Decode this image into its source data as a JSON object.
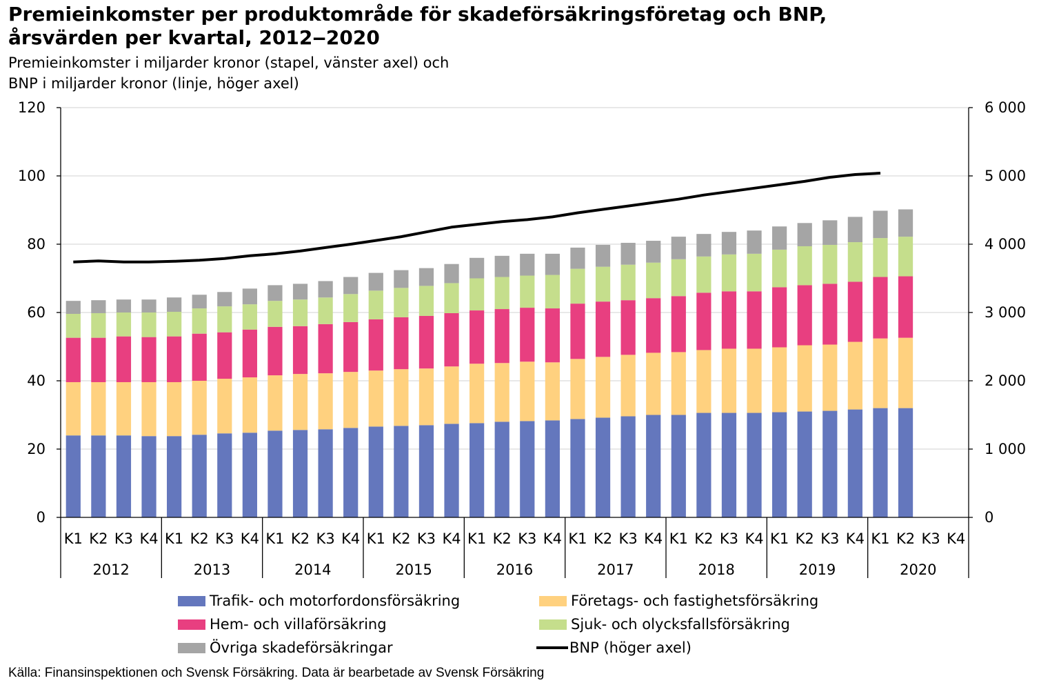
{
  "title": "Premieinkomster per produktområde för skadeförsäkringsföretag och BNP, årsvärden per kvartal, 2012‒2020",
  "subtitle_line1": "Premieinkomster i miljarder kronor (stapel, vänster axel) och",
  "subtitle_line2": "BNP i miljarder kronor (linje, höger axel)",
  "source": "Källa: Finansinspektionen och Svensk Försäkring. Data är bearbetade av Svensk Försäkring",
  "chart_data": {
    "type": "bar",
    "stacked": true,
    "years": [
      "2012",
      "2013",
      "2014",
      "2015",
      "2016",
      "2017",
      "2018",
      "2019",
      "2020"
    ],
    "quarters": [
      "K1",
      "K2",
      "K3",
      "K4"
    ],
    "categories": [
      "2012 K1",
      "2012 K2",
      "2012 K3",
      "2012 K4",
      "2013 K1",
      "2013 K2",
      "2013 K3",
      "2013 K4",
      "2014 K1",
      "2014 K2",
      "2014 K3",
      "2014 K4",
      "2015 K1",
      "2015 K2",
      "2015 K3",
      "2015 K4",
      "2016 K1",
      "2016 K2",
      "2016 K3",
      "2016 K4",
      "2017 K1",
      "2017 K2",
      "2017 K3",
      "2017 K4",
      "2018 K1",
      "2018 K2",
      "2018 K3",
      "2018 K4",
      "2019 K1",
      "2019 K2",
      "2019 K3",
      "2019 K4",
      "2020 K1",
      "2020 K2",
      "2020 K3",
      "2020 K4"
    ],
    "y_left": {
      "min": 0,
      "max": 120,
      "ticks": [
        "0",
        "20",
        "40",
        "60",
        "80",
        "100",
        "120"
      ]
    },
    "y_right": {
      "min": 0,
      "max": 6000,
      "ticks": [
        "0",
        "1 000",
        "2 000",
        "3 000",
        "4 000",
        "5 000",
        "6 000"
      ]
    },
    "grid": true,
    "legend_position": "bottom",
    "series": [
      {
        "name": "Trafik- och motorfordonsförsäkring",
        "color": "#6477BD",
        "values": [
          24.0,
          24.0,
          24.0,
          23.8,
          23.8,
          24.2,
          24.6,
          24.8,
          25.4,
          25.6,
          25.8,
          26.2,
          26.6,
          26.8,
          27.0,
          27.4,
          27.6,
          28.0,
          28.2,
          28.4,
          28.8,
          29.2,
          29.6,
          30.0,
          30.0,
          30.6,
          30.6,
          30.6,
          30.8,
          31.0,
          31.2,
          31.6,
          32.0,
          32.0,
          null,
          null
        ]
      },
      {
        "name": "Företags- och fastighetsförsäkring",
        "color": "#FFD17F",
        "values": [
          15.6,
          15.6,
          15.6,
          15.8,
          15.8,
          15.8,
          16.0,
          16.2,
          16.2,
          16.4,
          16.4,
          16.4,
          16.4,
          16.6,
          16.6,
          16.8,
          17.4,
          17.2,
          17.4,
          17.0,
          17.6,
          17.8,
          18.0,
          18.2,
          18.4,
          18.4,
          18.8,
          18.8,
          19.0,
          19.4,
          19.4,
          19.8,
          20.4,
          20.6,
          null,
          null
        ]
      },
      {
        "name": "Hem- och villaförsäkring",
        "color": "#E83F80",
        "values": [
          13.0,
          13.0,
          13.4,
          13.2,
          13.4,
          13.8,
          13.6,
          14.0,
          14.2,
          14.0,
          14.4,
          14.6,
          15.0,
          15.2,
          15.4,
          15.6,
          15.6,
          15.8,
          15.8,
          15.8,
          16.2,
          16.2,
          16.0,
          16.0,
          16.4,
          16.8,
          16.8,
          16.8,
          17.6,
          17.6,
          17.8,
          17.6,
          18.0,
          18.0,
          null,
          null
        ]
      },
      {
        "name": "Sjuk- och olycksfallsförsäkring",
        "color": "#C5DE8C",
        "values": [
          7.0,
          7.2,
          7.0,
          7.2,
          7.2,
          7.4,
          7.6,
          7.4,
          7.6,
          7.8,
          7.8,
          8.2,
          8.4,
          8.6,
          8.8,
          8.8,
          9.4,
          9.4,
          9.4,
          9.8,
          10.2,
          10.2,
          10.4,
          10.4,
          10.8,
          10.6,
          10.8,
          11.0,
          11.0,
          11.4,
          11.4,
          11.6,
          11.4,
          11.6,
          null,
          null
        ]
      },
      {
        "name": "Övriga skadeförsäkringar",
        "color": "#A5A5A5",
        "values": [
          3.8,
          3.8,
          3.8,
          3.8,
          4.2,
          4.0,
          4.2,
          4.6,
          4.6,
          4.6,
          4.8,
          5.0,
          5.2,
          5.2,
          5.2,
          5.6,
          6.0,
          6.2,
          6.4,
          6.2,
          6.2,
          6.4,
          6.4,
          6.4,
          6.6,
          6.6,
          6.6,
          6.8,
          6.8,
          6.8,
          7.2,
          7.4,
          8.0,
          8.0,
          null,
          null
        ]
      }
    ],
    "line_series": {
      "name": "BNP (höger axel)",
      "color": "#000000",
      "axis": "right",
      "values": [
        3740,
        3755,
        3740,
        3740,
        3750,
        3765,
        3790,
        3830,
        3860,
        3900,
        3950,
        4000,
        4055,
        4110,
        4180,
        4250,
        4290,
        4330,
        4360,
        4400,
        4460,
        4510,
        4560,
        4610,
        4660,
        4720,
        4770,
        4820,
        4870,
        4920,
        4980,
        5020,
        5040,
        null,
        null,
        null
      ]
    }
  }
}
